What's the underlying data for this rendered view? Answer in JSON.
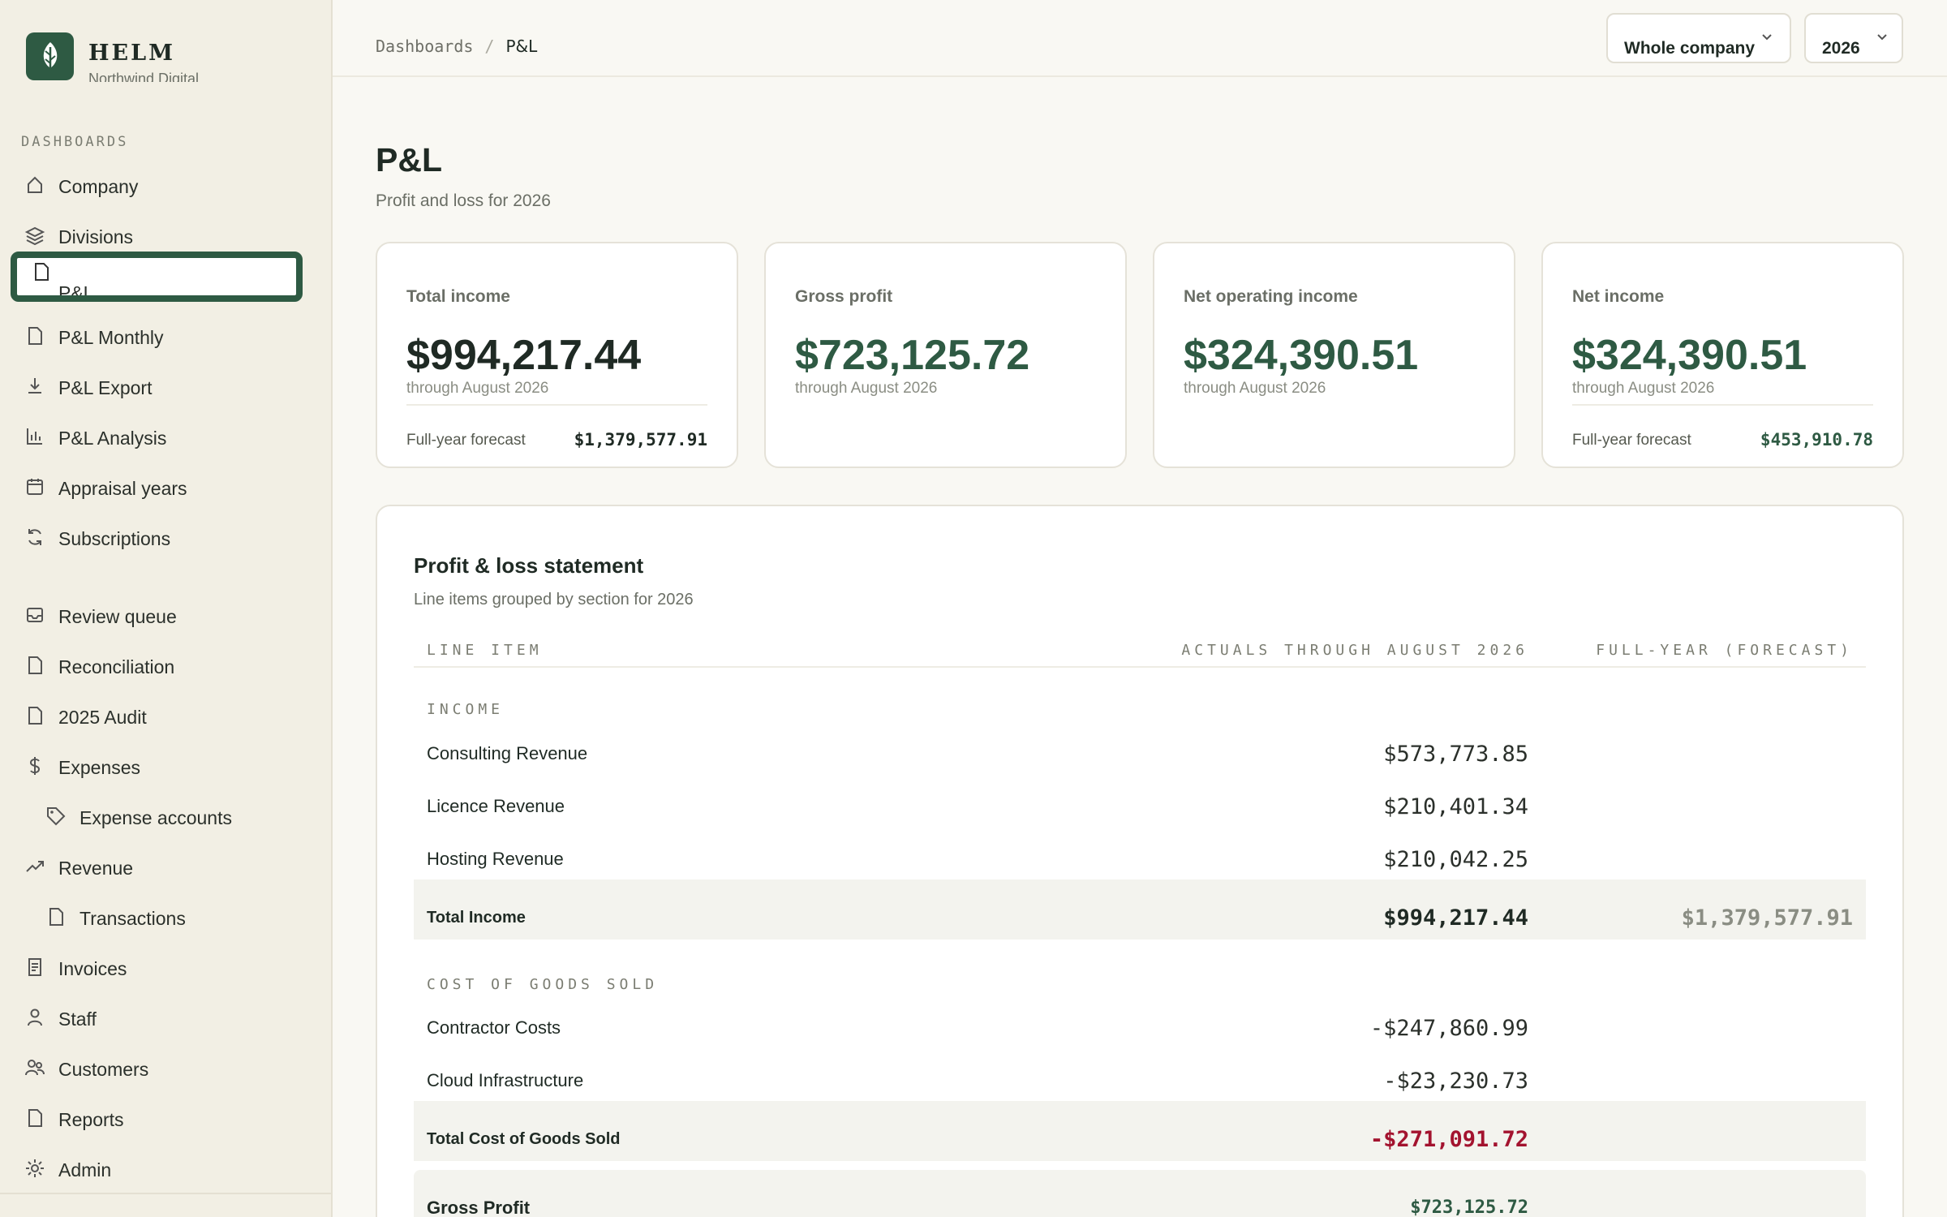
{
  "app": {
    "name": "HELM",
    "org": "Northwind Digital"
  },
  "sidebar": {
    "section_label": "DASHBOARDS",
    "items": [
      {
        "label": "Company",
        "icon": "home-icon"
      },
      {
        "label": "Divisions",
        "icon": "layers-icon"
      },
      {
        "label": "P&L",
        "icon": "document-icon",
        "active": true
      },
      {
        "label": "P&L Monthly",
        "icon": "document-icon"
      },
      {
        "label": "P&L Export",
        "icon": "download-icon"
      },
      {
        "label": "P&L Analysis",
        "icon": "bar-chart-icon"
      },
      {
        "label": "Appraisal years",
        "icon": "calendar-icon"
      },
      {
        "label": "Subscriptions",
        "icon": "refresh-icon"
      },
      {
        "label": "Review queue",
        "icon": "inbox-icon"
      },
      {
        "label": "Reconciliation",
        "icon": "document-icon"
      },
      {
        "label": "2025 Audit",
        "icon": "document-icon"
      },
      {
        "label": "Expenses",
        "icon": "dollar-icon"
      },
      {
        "label": "Expense accounts",
        "icon": "tag-icon"
      },
      {
        "label": "Revenue",
        "icon": "trending-up-icon"
      },
      {
        "label": "Transactions",
        "icon": "document-icon"
      },
      {
        "label": "Invoices",
        "icon": "invoice-icon"
      },
      {
        "label": "Staff",
        "icon": "user-icon"
      },
      {
        "label": "Customers",
        "icon": "users-icon"
      },
      {
        "label": "Reports",
        "icon": "document-icon"
      },
      {
        "label": "Admin",
        "icon": "gear-icon"
      }
    ]
  },
  "topbar": {
    "breadcrumb": [
      "Dashboards",
      "P&L"
    ],
    "company_select": "Whole company",
    "year_select": "2026"
  },
  "header": {
    "title": "P&L",
    "subtitle": "Profit and loss for 2026"
  },
  "kpis": [
    {
      "label": "Total income",
      "value": "$994,217.44",
      "sub": "through August 2026",
      "forecast_label": "Full-year forecast",
      "forecast_value": "$1,379,577.91"
    },
    {
      "label": "Gross profit",
      "value": "$723,125.72",
      "sub": "through August 2026"
    },
    {
      "label": "Net operating income",
      "value": "$324,390.51",
      "sub": "through August 2026"
    },
    {
      "label": "Net income",
      "value": "$324,390.51",
      "sub": "through August 2026",
      "forecast_label": "Full-year forecast",
      "forecast_value": "$453,910.78"
    }
  ],
  "statement": {
    "title": "Profit & loss statement",
    "subtitle": "Line items grouped by section for 2026",
    "columns": [
      "LINE ITEM",
      "ACTUALS THROUGH AUGUST 2026",
      "FULL-YEAR (FORECAST)"
    ],
    "income": {
      "label": "INCOME",
      "rows": [
        {
          "name": "Consulting Revenue",
          "actual": "$573,773.85"
        },
        {
          "name": "Licence Revenue",
          "actual": "$210,401.34"
        },
        {
          "name": "Hosting Revenue",
          "actual": "$210,042.25"
        }
      ],
      "total": {
        "name": "Total Income",
        "actual": "$994,217.44",
        "forecast": "$1,379,577.91"
      }
    },
    "cogs": {
      "label": "COST OF GOODS SOLD",
      "rows": [
        {
          "name": "Contractor Costs",
          "actual": "-$247,860.99"
        },
        {
          "name": "Cloud Infrastructure",
          "actual": "-$23,230.73"
        }
      ],
      "total": {
        "name": "Total Cost of Goods Sold",
        "actual": "-$271,091.72"
      }
    },
    "gross_profit": {
      "name": "Gross Profit",
      "actual": "$723,125.72"
    }
  },
  "colors": {
    "brand": "#2e5a43",
    "negative": "#a3132f",
    "sidebar_bg": "#f2efe4"
  }
}
